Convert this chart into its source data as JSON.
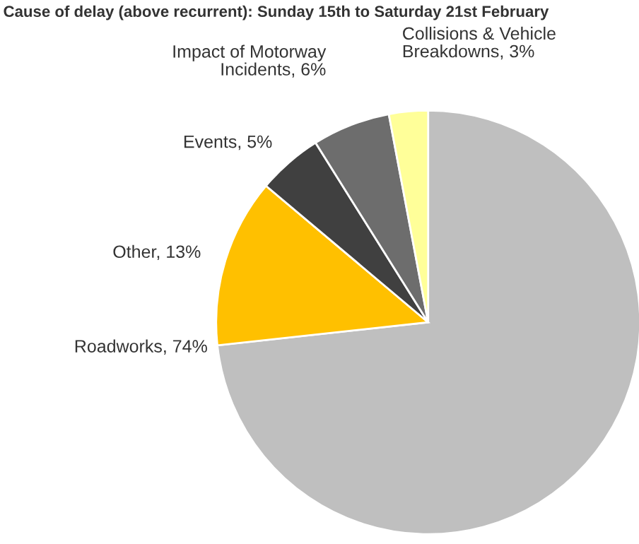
{
  "chart_data": {
    "type": "pie",
    "title": "Cause of delay (above recurrent): Sunday 15th to Saturday 21st February",
    "categories": [
      "Roadworks, 74%",
      "Other, 13%",
      "Events, 5%",
      "Impact of Motorway\nIncidents, 6%",
      "Collisions & Vehicle\nBreakdowns, 3%"
    ],
    "values": [
      74,
      13,
      5,
      6,
      3
    ],
    "colors": [
      "#bfbfbf",
      "#ffc000",
      "#404040",
      "#6d6d6d",
      "#ffff99"
    ]
  }
}
